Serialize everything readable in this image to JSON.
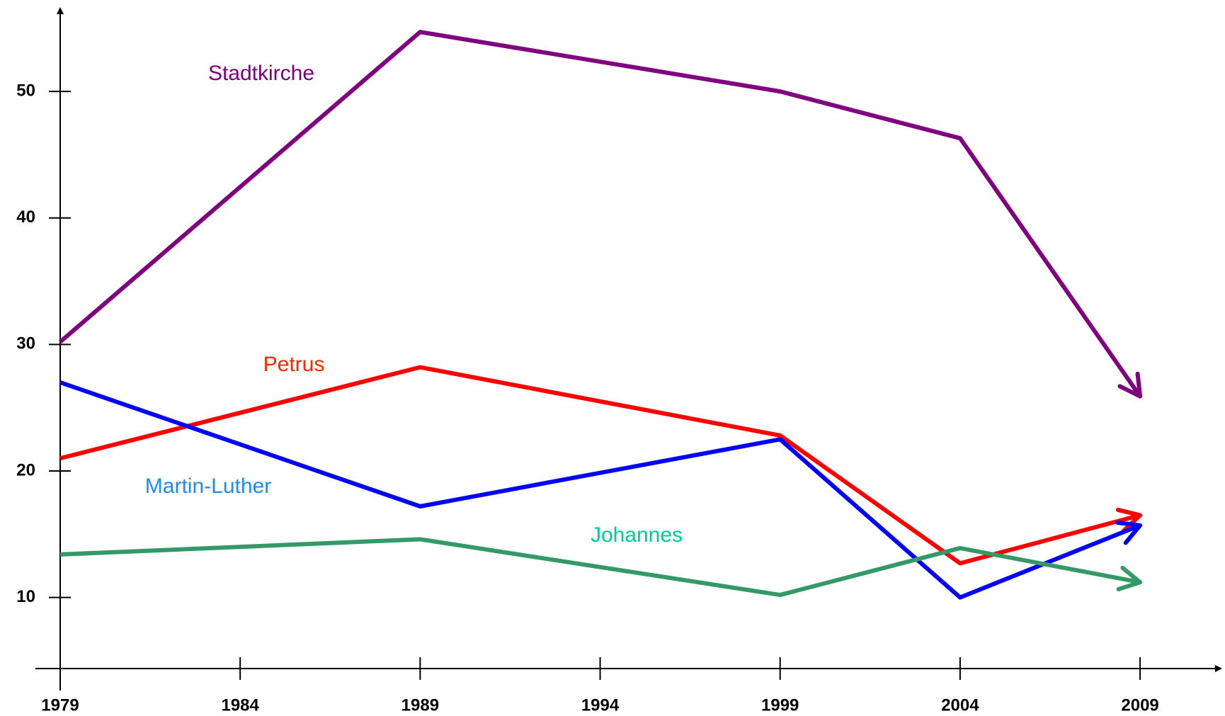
{
  "chart_data": {
    "type": "line",
    "x": [
      1979,
      1989,
      1999,
      2004,
      2009
    ],
    "series": [
      {
        "name": "Stadtkirche",
        "color": "#800080",
        "label_color": "#800080",
        "values": [
          30.2,
          54.7,
          50,
          46.3,
          25.9
        ]
      },
      {
        "name": "Petrus",
        "color": "#ff0000",
        "label_color": "#ff2a00",
        "values": [
          21.0,
          28.2,
          22.8,
          12.7,
          16.5
        ]
      },
      {
        "name": "Martin-Luther",
        "color": "#0000ff",
        "label_color": "#1a8cff",
        "values": [
          27.0,
          17.2,
          22.5,
          10,
          15.7
        ]
      },
      {
        "name": "Johannes",
        "color": "#339966",
        "label_color": "#00cc99",
        "values": [
          13.4,
          14.6,
          10.2,
          13.9,
          11.2
        ]
      }
    ],
    "xlim": [
      1979,
      2011.3
    ],
    "xticks": [
      1979,
      1984,
      1989,
      1994,
      1999,
      2004,
      2009
    ],
    "ylim": [
      4.1,
      56.5
    ],
    "yticks": [
      10,
      20,
      30,
      40,
      50
    ]
  }
}
